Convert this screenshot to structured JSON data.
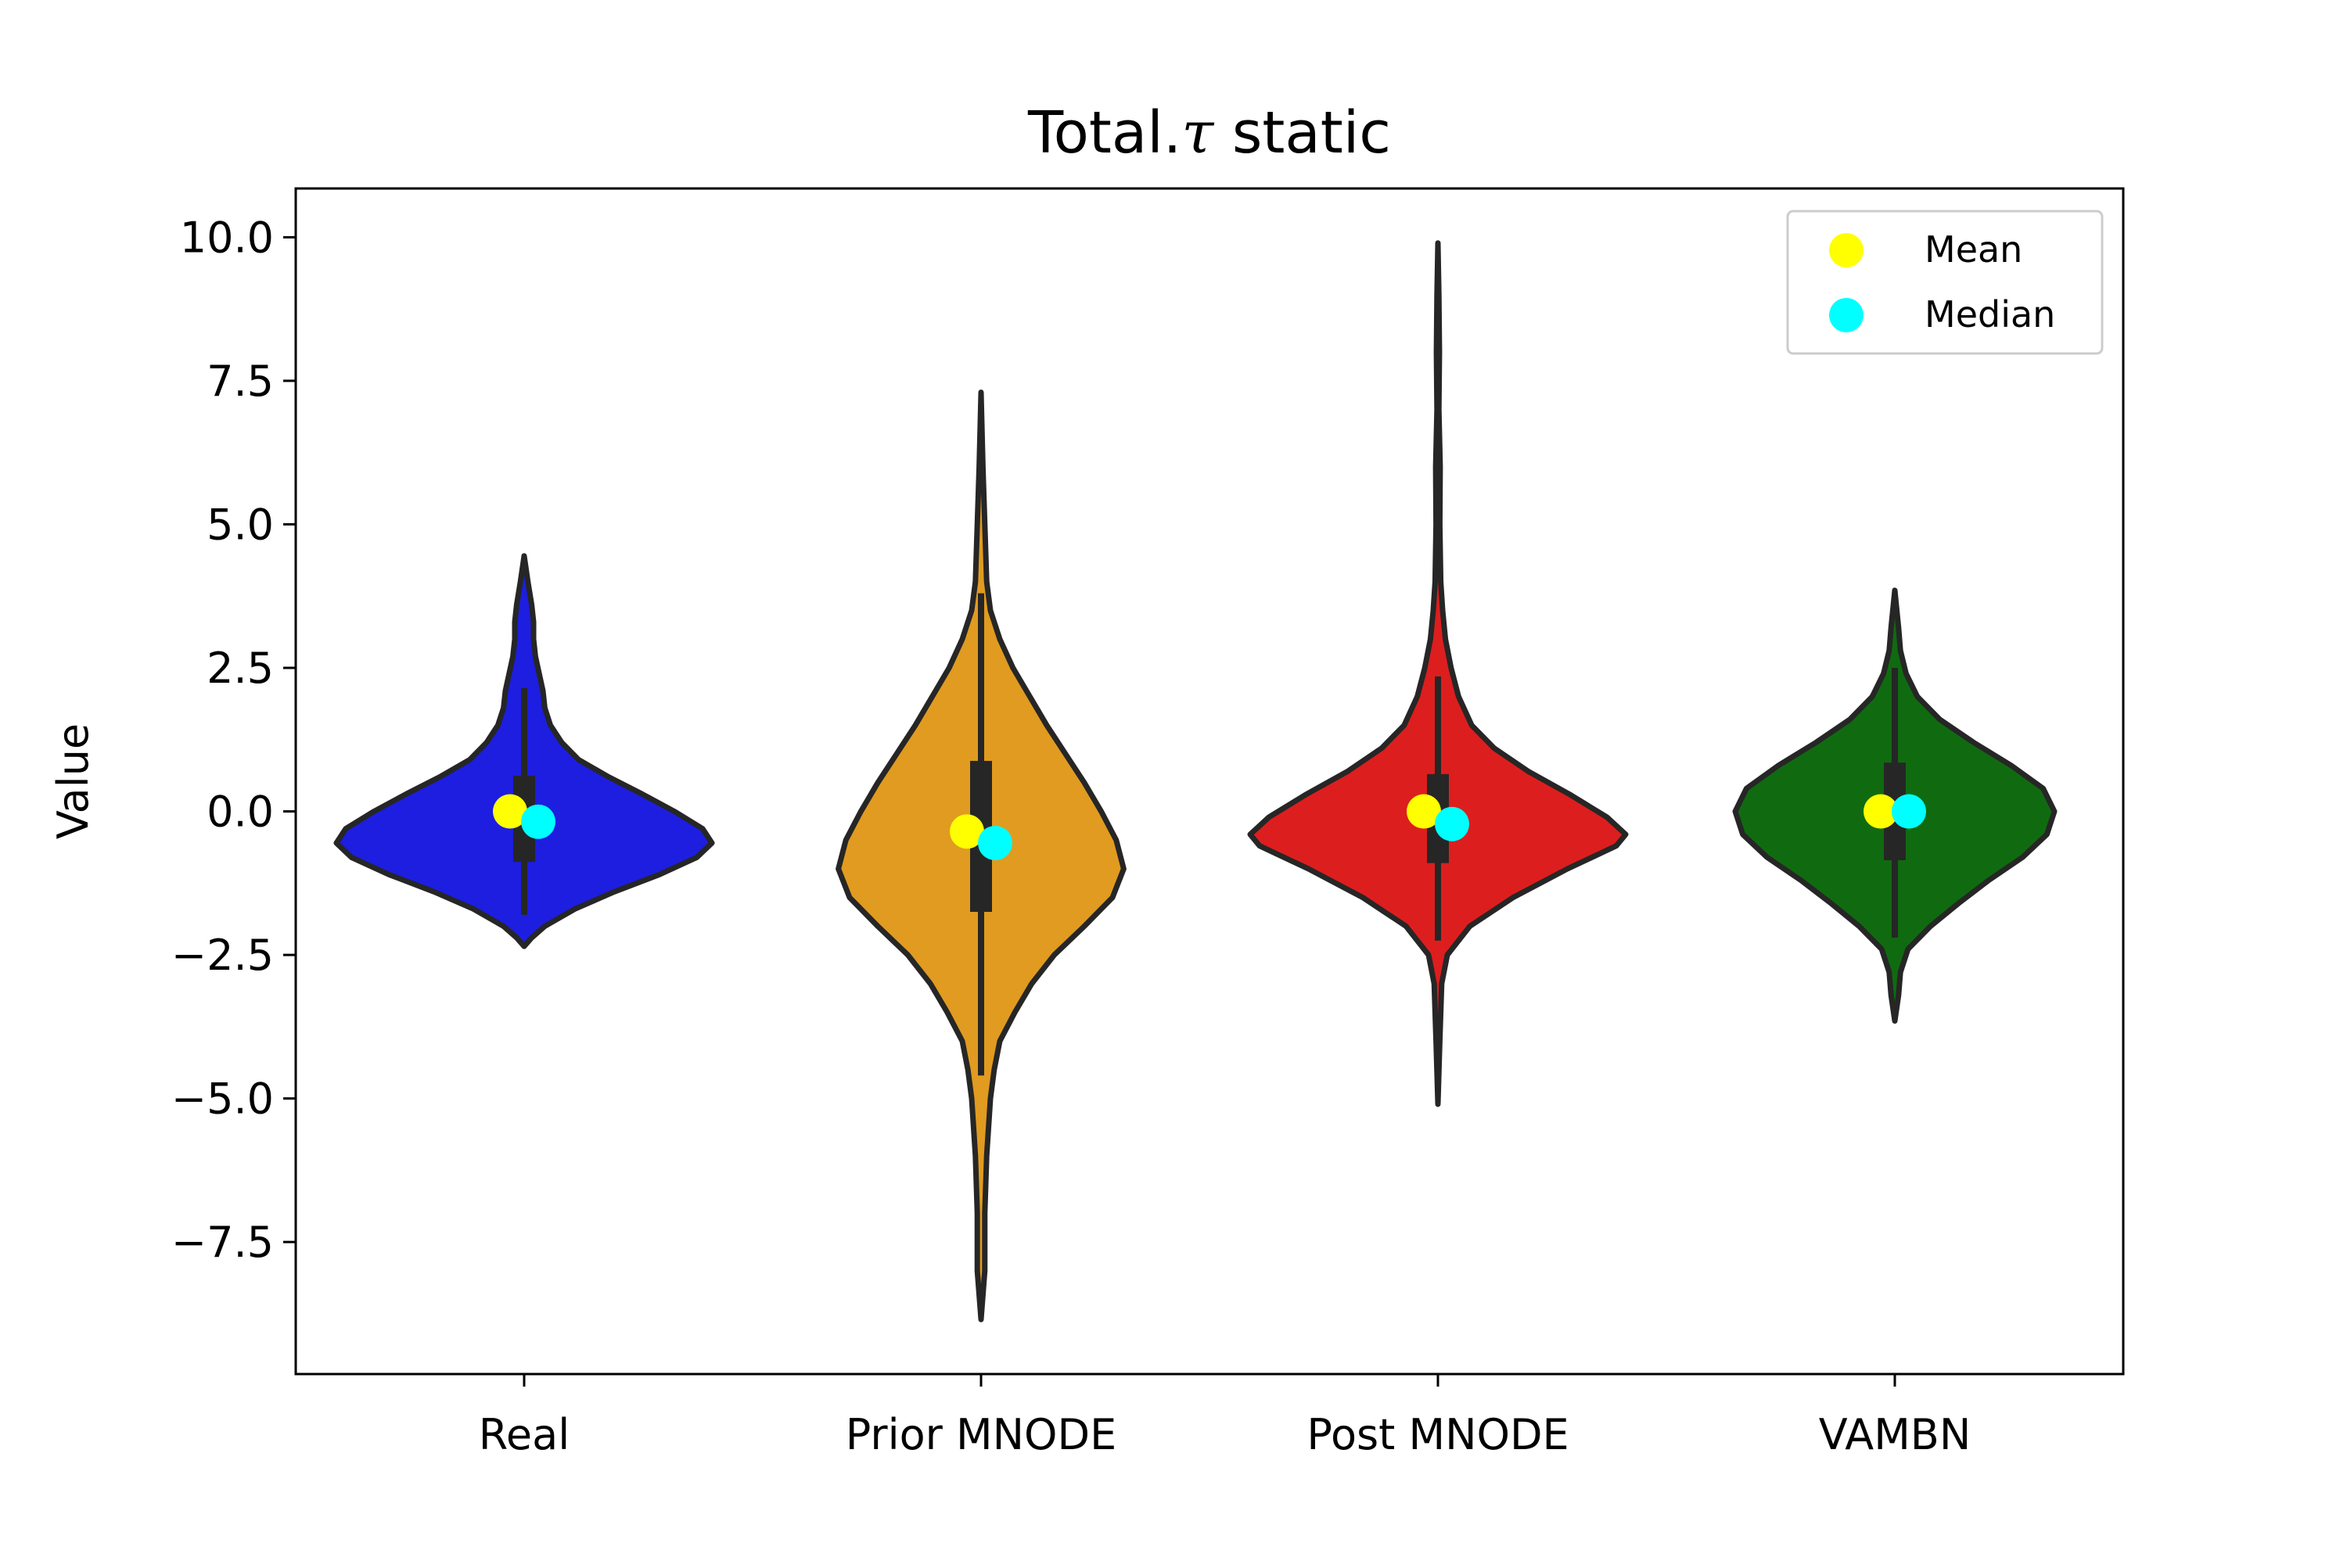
{
  "chart_data": {
    "type": "violin",
    "title": "Total.τ static",
    "title_prefix": "Total.",
    "title_symbol": "τ",
    "title_suffix": " static",
    "xlabel": "",
    "ylabel": "Value",
    "ylim": [
      -9.8,
      10.85
    ],
    "yticks": [
      10.0,
      7.5,
      5.0,
      2.5,
      0.0,
      -2.5,
      -5.0,
      -7.5
    ],
    "ytick_labels": [
      "10.0",
      "7.5",
      "5.0",
      "2.5",
      "0.0",
      "−2.5",
      "−5.0",
      "−7.5"
    ],
    "categories": [
      "Real",
      "Prior MNODE",
      "Post MNODE",
      "VAMBN"
    ],
    "grid": false,
    "legend": {
      "placement": "top-right",
      "entries": [
        {
          "label": "Mean",
          "color": "#ffff00"
        },
        {
          "label": "Median",
          "color": "#00ffff"
        }
      ]
    },
    "series": [
      {
        "category": "Real",
        "color": "#1d1ee0",
        "min": -2.35,
        "max": 4.45,
        "q1": -0.88,
        "q3": 0.62,
        "whisker_low": -1.8,
        "whisker_high": 2.15,
        "mean": 0.0,
        "median": -0.18,
        "density": [
          [
            -2.35,
            0.0
          ],
          [
            -2.2,
            0.04
          ],
          [
            -2.0,
            0.11
          ],
          [
            -1.7,
            0.27
          ],
          [
            -1.4,
            0.48
          ],
          [
            -1.1,
            0.72
          ],
          [
            -0.8,
            0.92
          ],
          [
            -0.55,
            1.0
          ],
          [
            -0.3,
            0.95
          ],
          [
            0.0,
            0.8
          ],
          [
            0.3,
            0.63
          ],
          [
            0.6,
            0.45
          ],
          [
            0.9,
            0.29
          ],
          [
            1.2,
            0.2
          ],
          [
            1.5,
            0.14
          ],
          [
            1.8,
            0.11
          ],
          [
            2.1,
            0.1
          ],
          [
            2.4,
            0.08
          ],
          [
            2.7,
            0.06
          ],
          [
            3.0,
            0.05
          ],
          [
            3.3,
            0.05
          ],
          [
            3.6,
            0.04
          ],
          [
            4.0,
            0.02
          ],
          [
            4.45,
            0.0
          ]
        ]
      },
      {
        "category": "Prior MNODE",
        "color": "#e09b20",
        "min": -8.85,
        "max": 7.3,
        "q1": -1.75,
        "q3": 0.88,
        "whisker_low": -4.6,
        "whisker_high": 3.8,
        "mean": -0.35,
        "median": -0.55,
        "density": [
          [
            -8.85,
            0.0
          ],
          [
            -8.0,
            0.02
          ],
          [
            -7.0,
            0.02
          ],
          [
            -6.0,
            0.03
          ],
          [
            -5.0,
            0.05
          ],
          [
            -4.5,
            0.07
          ],
          [
            -4.0,
            0.1
          ],
          [
            -3.5,
            0.18
          ],
          [
            -3.0,
            0.27
          ],
          [
            -2.5,
            0.39
          ],
          [
            -2.0,
            0.55
          ],
          [
            -1.5,
            0.7
          ],
          [
            -1.0,
            0.76
          ],
          [
            -0.5,
            0.72
          ],
          [
            0.0,
            0.64
          ],
          [
            0.5,
            0.55
          ],
          [
            1.0,
            0.45
          ],
          [
            1.5,
            0.35
          ],
          [
            2.0,
            0.26
          ],
          [
            2.5,
            0.17
          ],
          [
            3.0,
            0.1
          ],
          [
            3.5,
            0.05
          ],
          [
            4.0,
            0.03
          ],
          [
            5.0,
            0.02
          ],
          [
            6.0,
            0.01
          ],
          [
            7.3,
            0.0
          ]
        ]
      },
      {
        "category": "Post MNODE",
        "color": "#dd1e1e",
        "min": -5.1,
        "max": 9.9,
        "q1": -0.9,
        "q3": 0.65,
        "whisker_low": -2.25,
        "whisker_high": 2.35,
        "mean": 0.0,
        "median": -0.22,
        "density": [
          [
            -5.1,
            0.0
          ],
          [
            -4.0,
            0.01
          ],
          [
            -3.0,
            0.02
          ],
          [
            -2.5,
            0.05
          ],
          [
            -2.0,
            0.17
          ],
          [
            -1.5,
            0.4
          ],
          [
            -1.0,
            0.69
          ],
          [
            -0.6,
            0.95
          ],
          [
            -0.4,
            1.0
          ],
          [
            -0.1,
            0.9
          ],
          [
            0.3,
            0.7
          ],
          [
            0.7,
            0.48
          ],
          [
            1.1,
            0.3
          ],
          [
            1.5,
            0.18
          ],
          [
            2.0,
            0.11
          ],
          [
            2.5,
            0.07
          ],
          [
            3.0,
            0.04
          ],
          [
            3.5,
            0.025
          ],
          [
            4.0,
            0.015
          ],
          [
            5.0,
            0.01
          ],
          [
            6.0,
            0.012
          ],
          [
            7.0,
            0.005
          ],
          [
            8.0,
            0.008
          ],
          [
            9.0,
            0.005
          ],
          [
            9.9,
            0.0
          ]
        ]
      },
      {
        "category": "VAMBN",
        "color": "#106b10",
        "min": -3.65,
        "max": 3.85,
        "q1": -0.85,
        "q3": 0.85,
        "whisker_low": -2.2,
        "whisker_high": 2.5,
        "mean": 0.0,
        "median": 0.0,
        "density": [
          [
            -3.65,
            0.0
          ],
          [
            -3.2,
            0.02
          ],
          [
            -2.8,
            0.03
          ],
          [
            -2.4,
            0.07
          ],
          [
            -2.0,
            0.19
          ],
          [
            -1.6,
            0.34
          ],
          [
            -1.2,
            0.5
          ],
          [
            -0.8,
            0.68
          ],
          [
            -0.4,
            0.81
          ],
          [
            0.0,
            0.85
          ],
          [
            0.4,
            0.79
          ],
          [
            0.8,
            0.62
          ],
          [
            1.2,
            0.42
          ],
          [
            1.6,
            0.24
          ],
          [
            2.0,
            0.12
          ],
          [
            2.4,
            0.06
          ],
          [
            2.8,
            0.03
          ],
          [
            3.2,
            0.02
          ],
          [
            3.85,
            0.0
          ]
        ]
      }
    ]
  }
}
